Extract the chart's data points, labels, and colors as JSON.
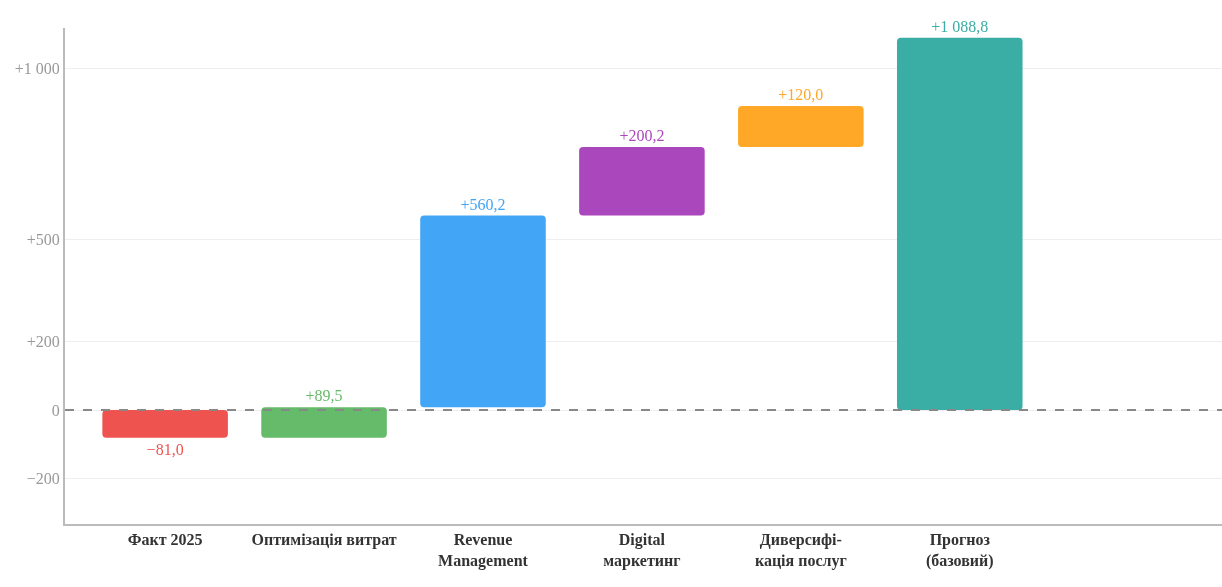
{
  "chart_data": {
    "type": "bar",
    "categories": [
      "Факт 2025",
      "Оптимізація витрат",
      "Revenue\nManagement",
      "Digital\nмаркетинг",
      "Диверсифі-\nкація послуг",
      "Прогноз\n(базовий)"
    ],
    "values": [
      -81.0,
      89.5,
      560.2,
      200.2,
      120.0,
      1088.8
    ],
    "base": [
      0,
      -81.0,
      8.5,
      568.7,
      768.9,
      0
    ],
    "colors": [
      "#ef5350",
      "#66bb6a",
      "#42a5f5",
      "#ab47bc",
      "#ffa726",
      "#3aada4"
    ],
    "value_labels": [
      "−81,0",
      "+89,5",
      "+560,2",
      "+200,2",
      "+120,0",
      "+1 088,8"
    ],
    "ylim": [
      -333,
      1117
    ],
    "yticks": [
      {
        "value": 1000,
        "label": "+1 000"
      },
      {
        "value": 500,
        "label": "+500"
      },
      {
        "value": 200,
        "label": "+200"
      },
      0,
      {
        "value": -200,
        "label": "−200"
      }
    ],
    "ref_lines": [
      {
        "axis": "y",
        "value": 0,
        "label": null,
        "color": "#888888",
        "line_style": "dashed"
      }
    ],
    "grid": "y"
  }
}
